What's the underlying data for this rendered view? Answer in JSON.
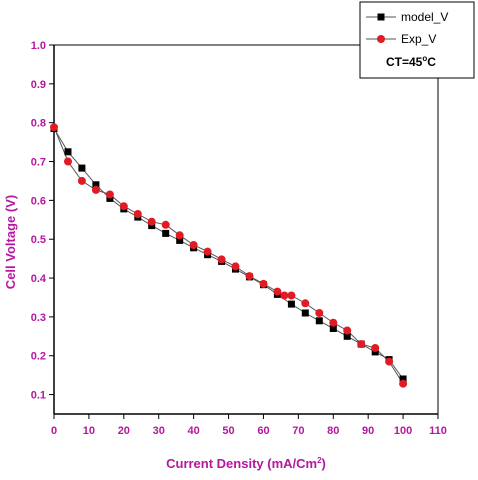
{
  "colors": {
    "axis_text": "#b5179e",
    "model": "#000000",
    "exp": "#e01b24",
    "line": "#555555"
  },
  "chart_data": {
    "type": "line",
    "xlabel": "Current Density (mA/Cm",
    "xlabel_sup": "2",
    "xlabel_end": ")",
    "ylabel": "Cell Voltage (V)",
    "xlim": [
      0,
      110
    ],
    "ylim": [
      0.05,
      1.0
    ],
    "xticks": [
      0,
      10,
      20,
      30,
      40,
      50,
      60,
      70,
      80,
      90,
      100,
      110
    ],
    "xtick_labels": [
      "0",
      "10",
      "20",
      "30",
      "40",
      "50",
      "60",
      "70",
      "80",
      "90",
      "100",
      "110"
    ],
    "yticks": [
      0.1,
      0.2,
      0.3,
      0.4,
      0.5,
      0.6,
      0.7,
      0.8,
      0.9,
      1.0
    ],
    "ytick_labels": [
      "0.1",
      "0.2",
      "0.3",
      "0.4",
      "0.5",
      "0.6",
      "0.7",
      "0.8",
      "0.9",
      "1.0"
    ],
    "legend_position": "top-right",
    "legend_note": {
      "prefix": "CT=45",
      "sup": "o",
      "suffix": "C"
    },
    "series": [
      {
        "name": "model_V",
        "marker": "square",
        "color": "#000000",
        "x": [
          0,
          4,
          8,
          12,
          16,
          20,
          24,
          28,
          32,
          36,
          40,
          44,
          48,
          52,
          56,
          60,
          64,
          68,
          72,
          76,
          80,
          84,
          88,
          92,
          96,
          100
        ],
        "y": [
          0.785,
          0.725,
          0.683,
          0.64,
          0.605,
          0.578,
          0.557,
          0.535,
          0.515,
          0.497,
          0.478,
          0.46,
          0.443,
          0.423,
          0.403,
          0.383,
          0.358,
          0.333,
          0.31,
          0.29,
          0.27,
          0.25,
          0.23,
          0.21,
          0.19,
          0.14
        ]
      },
      {
        "name": "Exp_V",
        "marker": "circle",
        "color": "#e01b24",
        "x": [
          0,
          4,
          8,
          12,
          16,
          20,
          24,
          28,
          32,
          36,
          40,
          44,
          48,
          52,
          56,
          60,
          64,
          66,
          68,
          72,
          76,
          80,
          84,
          88,
          92,
          96,
          100
        ],
        "y": [
          0.788,
          0.7,
          0.65,
          0.627,
          0.615,
          0.585,
          0.565,
          0.545,
          0.537,
          0.51,
          0.485,
          0.468,
          0.448,
          0.43,
          0.405,
          0.385,
          0.365,
          0.355,
          0.355,
          0.335,
          0.31,
          0.285,
          0.265,
          0.23,
          0.22,
          0.185,
          0.128
        ]
      }
    ]
  }
}
